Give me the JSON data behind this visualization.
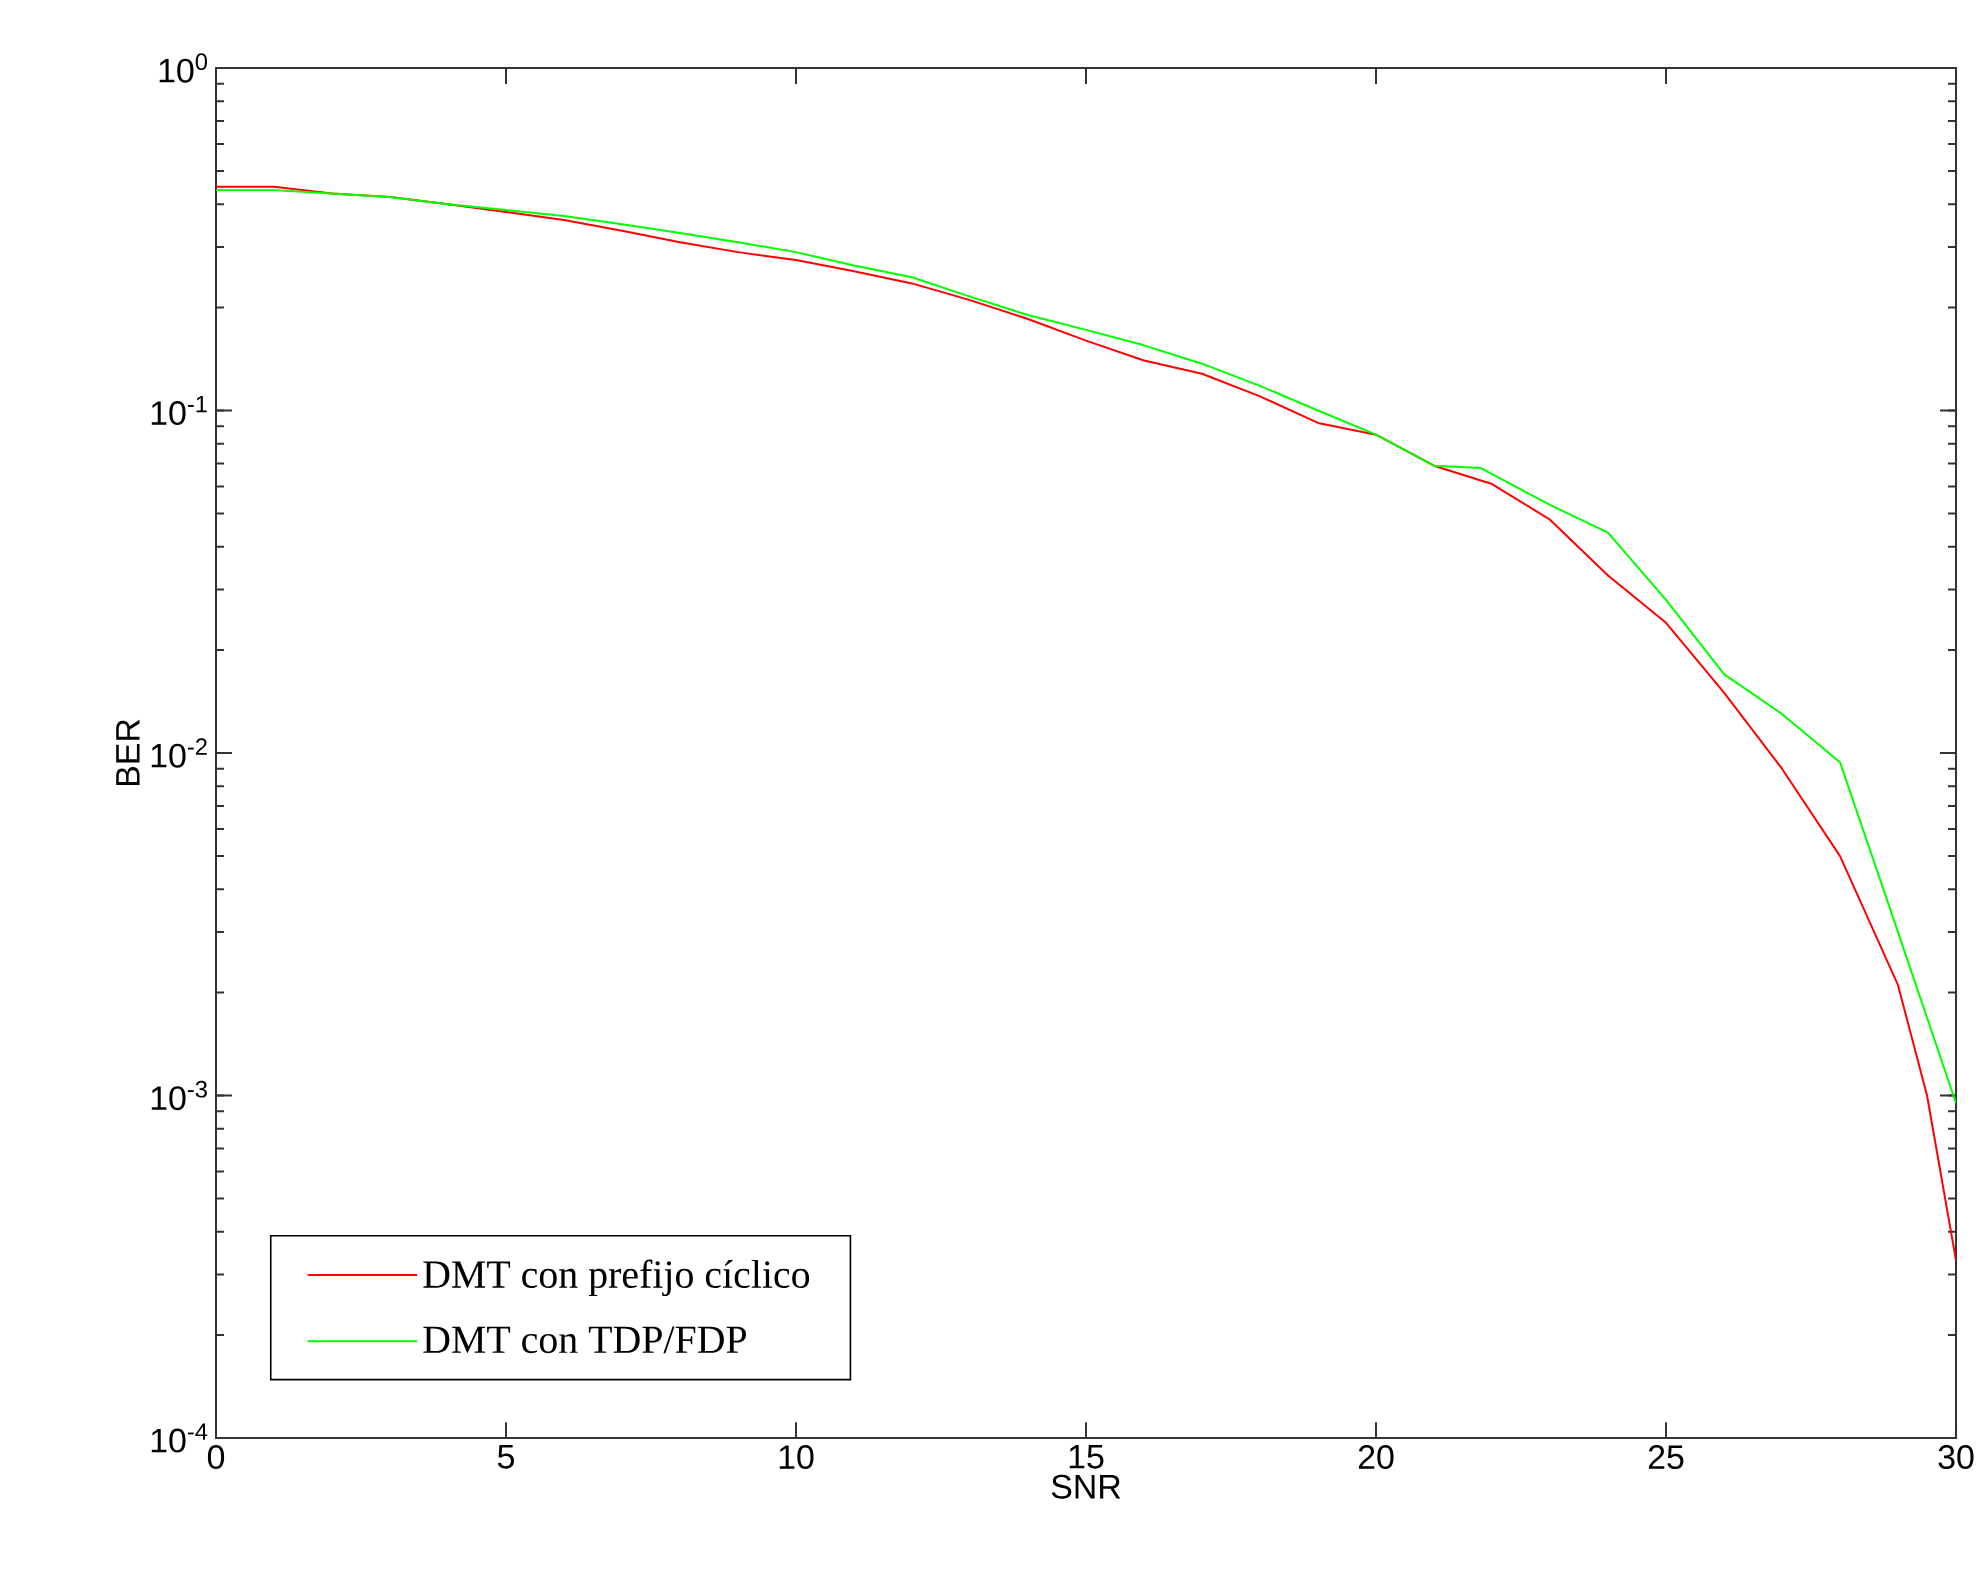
{
  "chart_data": {
    "type": "line",
    "xlabel": "SNR",
    "ylabel": "BER",
    "log": "y",
    "xlim": [
      0,
      30
    ],
    "ylim": [
      0.0001,
      1
    ],
    "xticks": [
      0,
      5,
      10,
      15,
      20,
      25,
      30
    ],
    "yticks": [
      {
        "value": 0.0001,
        "label": "10$^{-4}$"
      },
      {
        "value": 0.001,
        "label": "10$^{-3}$"
      },
      {
        "value": 0.01,
        "label": "10$^{-2}$"
      },
      {
        "value": 0.1,
        "label": "10$^{-1}$"
      },
      {
        "value": 1,
        "label": "10$^{0}$"
      }
    ],
    "grid": false,
    "legend": "bottom left",
    "marker": "none",
    "line_style": "solid",
    "series": [
      {
        "name": "DMT con prefijo cíclico",
        "color": "#ff0000",
        "x": [
          0,
          1,
          2,
          3,
          4,
          5,
          6,
          7,
          8,
          9,
          10,
          11,
          12,
          13,
          14,
          15,
          16,
          17,
          18,
          19,
          20,
          21,
          22,
          23,
          24,
          25,
          26,
          27,
          28,
          29,
          29.5,
          30
        ],
        "values": [
          0.45,
          0.45,
          0.43,
          0.42,
          0.4,
          0.38,
          0.36,
          0.335,
          0.31,
          0.29,
          0.275,
          0.255,
          0.235,
          0.21,
          0.185,
          0.16,
          0.14,
          0.128,
          0.11,
          0.092,
          0.085,
          0.069,
          0.061,
          0.048,
          0.033,
          0.024,
          0.015,
          0.009,
          0.005,
          0.0021,
          0.001,
          0.00033
        ]
      },
      {
        "name": "DMT con TDP/FDP",
        "color": "#00ff00",
        "x": [
          0,
          1,
          2,
          3,
          4,
          5,
          6,
          7,
          8,
          9,
          10,
          11,
          12,
          13,
          14,
          15,
          16,
          17,
          18,
          19,
          20,
          21,
          21.8,
          23,
          24,
          25,
          26,
          27,
          28,
          29,
          30
        ],
        "values": [
          0.44,
          0.44,
          0.43,
          0.42,
          0.4,
          0.385,
          0.37,
          0.35,
          0.33,
          0.31,
          0.29,
          0.265,
          0.245,
          0.215,
          0.19,
          0.172,
          0.155,
          0.137,
          0.118,
          0.1,
          0.085,
          0.069,
          0.068,
          0.053,
          0.044,
          0.028,
          0.017,
          0.013,
          0.0094,
          0.003,
          0.00095
        ]
      }
    ]
  }
}
